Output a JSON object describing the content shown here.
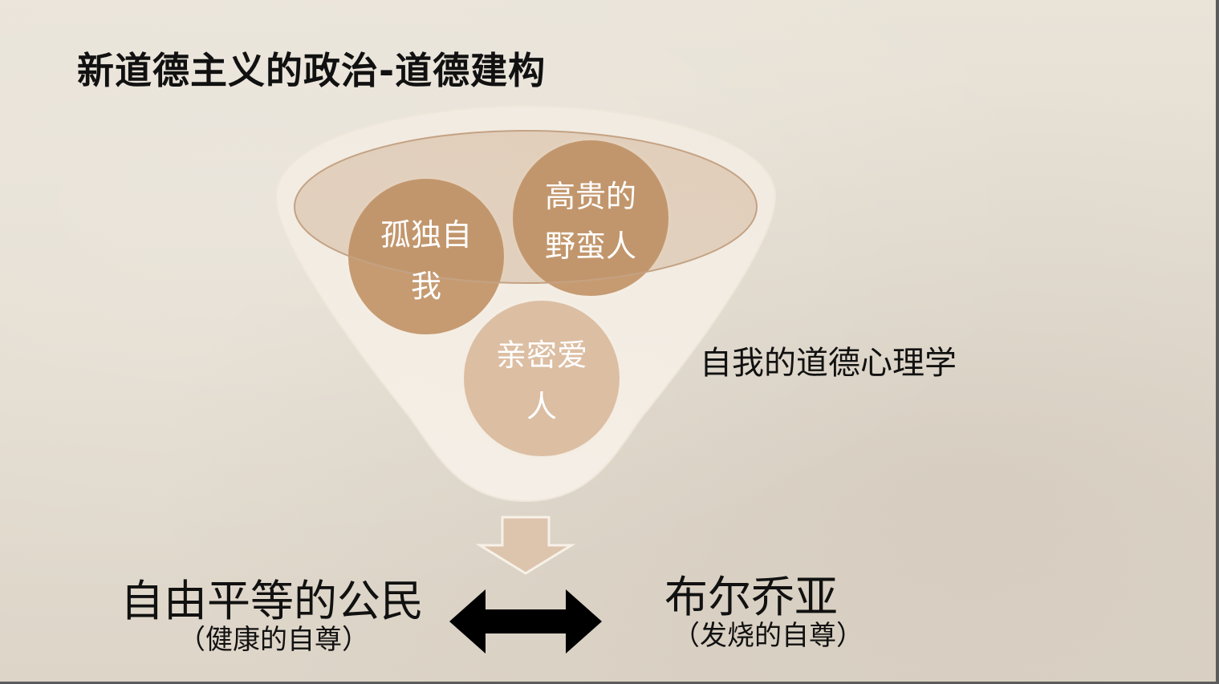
{
  "slide": {
    "title": "新道德主义的政治-道德建构",
    "funnel": {
      "circles": [
        {
          "id": "solitary-self",
          "line1": "孤独自",
          "line2": "我",
          "color": "#c69b72"
        },
        {
          "id": "noble-savage",
          "line1": "高贵的",
          "line2": "野蛮人",
          "color": "#c69b72"
        },
        {
          "id": "intimate-lover",
          "line1": "亲密爱",
          "line2": "人",
          "color": "#dcbea3"
        }
      ],
      "side_label": "自我的道德心理学"
    },
    "bottom": {
      "left": {
        "main": "自由平等的公民",
        "sub": "（健康的自尊）"
      },
      "right": {
        "main": "布尔乔亚",
        "sub": "（发烧的自尊）"
      }
    }
  }
}
